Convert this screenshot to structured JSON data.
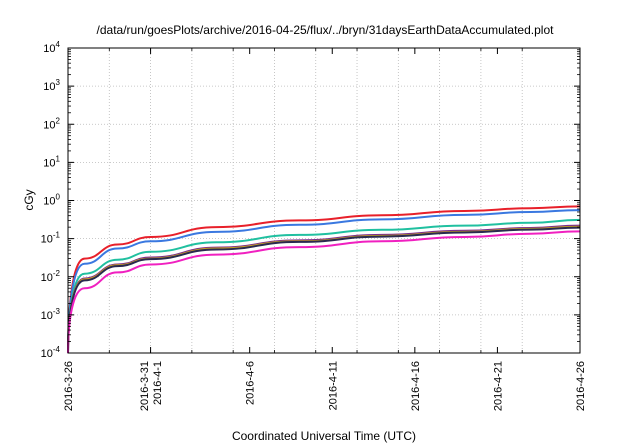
{
  "chart_data": {
    "type": "line",
    "title": "/data/run/goesPlots/archive/2016-04-25/flux/../bryn/31daysEarthDataAccumulated.plot",
    "xlabel": "Coordinated Universal Time (UTC)",
    "ylabel": "cGy",
    "y_scale": "log",
    "ylim_exponents": [
      -4,
      4
    ],
    "y_tick_base": "10",
    "y_tick_exponents": [
      "-4",
      "-3",
      "-2",
      "-1",
      "0",
      "1",
      "2",
      "3",
      "4"
    ],
    "xlim": [
      "2016-03-26",
      "2016-04-26"
    ],
    "x_tick_labels": [
      {
        "date": "2016-03-26",
        "lines": [
          "2016-3-26"
        ]
      },
      {
        "date": "2016-03-31",
        "lines": [
          "2016-3-31",
          "2016-4-1"
        ]
      },
      {
        "date": "2016-04-06",
        "lines": [
          "2016-4-6"
        ]
      },
      {
        "date": "2016-04-11",
        "lines": [
          "2016-4-11"
        ]
      },
      {
        "date": "2016-04-16",
        "lines": [
          "2016-4-16"
        ]
      },
      {
        "date": "2016-04-21",
        "lines": [
          "2016-4-21"
        ]
      },
      {
        "date": "2016-04-26",
        "lines": [
          "2016-4-26"
        ]
      }
    ],
    "grid": true,
    "series": [
      {
        "color": "#e8202a",
        "x": [
          "2016-03-26",
          "2016-03-27",
          "2016-03-29",
          "2016-03-31",
          "2016-04-04",
          "2016-04-09",
          "2016-04-14",
          "2016-04-19",
          "2016-04-23",
          "2016-04-26"
        ],
        "values": [
          0.0001,
          0.03,
          0.07,
          0.11,
          0.2,
          0.3,
          0.41,
          0.53,
          0.63,
          0.7
        ]
      },
      {
        "color": "#3a78e0",
        "x": [
          "2016-03-26",
          "2016-03-27",
          "2016-03-29",
          "2016-03-31",
          "2016-04-04",
          "2016-04-09",
          "2016-04-14",
          "2016-04-19",
          "2016-04-23",
          "2016-04-26"
        ],
        "values": [
          0.0001,
          0.022,
          0.055,
          0.085,
          0.15,
          0.23,
          0.32,
          0.42,
          0.5,
          0.56
        ]
      },
      {
        "color": "#20c0a0",
        "x": [
          "2016-03-26",
          "2016-03-27",
          "2016-03-29",
          "2016-03-31",
          "2016-04-04",
          "2016-04-09",
          "2016-04-14",
          "2016-04-19",
          "2016-04-23",
          "2016-04-26"
        ],
        "values": [
          0.0001,
          0.012,
          0.028,
          0.045,
          0.08,
          0.125,
          0.17,
          0.22,
          0.26,
          0.31
        ]
      },
      {
        "color": "#7a2e8c",
        "x": [
          "2016-03-26",
          "2016-03-27",
          "2016-03-29",
          "2016-03-31",
          "2016-04-04",
          "2016-04-09",
          "2016-04-14",
          "2016-04-19",
          "2016-04-23",
          "2016-04-26"
        ],
        "values": [
          0.0001,
          0.009,
          0.021,
          0.032,
          0.058,
          0.09,
          0.125,
          0.16,
          0.19,
          0.22
        ]
      },
      {
        "color": "#c8a020",
        "x": [
          "2016-03-26",
          "2016-03-27",
          "2016-03-29",
          "2016-03-31",
          "2016-04-04",
          "2016-04-09",
          "2016-04-14",
          "2016-04-19",
          "2016-04-23",
          "2016-04-26"
        ],
        "values": [
          0.0001,
          0.0085,
          0.02,
          0.03,
          0.055,
          0.085,
          0.118,
          0.15,
          0.18,
          0.205
        ]
      },
      {
        "color": "#2a2a50",
        "x": [
          "2016-03-26",
          "2016-03-27",
          "2016-03-29",
          "2016-03-31",
          "2016-04-04",
          "2016-04-09",
          "2016-04-14",
          "2016-04-19",
          "2016-04-23",
          "2016-04-26"
        ],
        "values": [
          0.0001,
          0.008,
          0.019,
          0.029,
          0.052,
          0.082,
          0.113,
          0.145,
          0.172,
          0.195
        ]
      },
      {
        "color": "#f020c0",
        "x": [
          "2016-03-26",
          "2016-03-27",
          "2016-03-29",
          "2016-03-31",
          "2016-04-04",
          "2016-04-09",
          "2016-04-14",
          "2016-04-19",
          "2016-04-23",
          "2016-04-26"
        ],
        "values": [
          0.0001,
          0.005,
          0.013,
          0.021,
          0.038,
          0.06,
          0.085,
          0.11,
          0.135,
          0.155
        ]
      }
    ]
  }
}
